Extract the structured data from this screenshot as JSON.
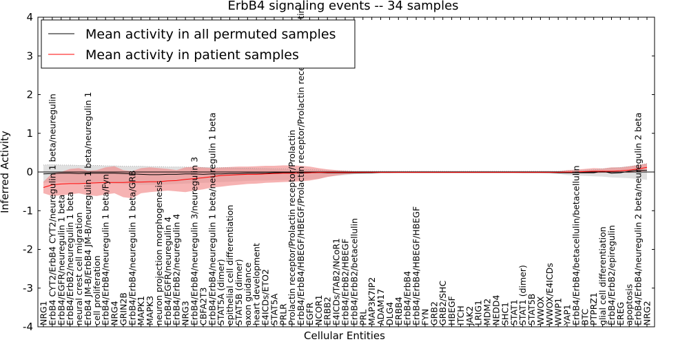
{
  "chart_data": {
    "type": "line",
    "title": "ErbB4 signaling events -- 34 samples",
    "xlabel": "Cellular Entities",
    "ylabel": "Inferred Activity",
    "ylim": [
      -4,
      4
    ],
    "yticks": [
      -4,
      -3,
      -2,
      -1,
      0,
      1,
      2,
      3,
      4
    ],
    "grid": false,
    "legend_position": "top-left",
    "colors": {
      "permuted": "#000000",
      "patient": "#ff0000",
      "patient_band": "#f08080",
      "permuted_band": "#bbbbbb"
    },
    "categories": [
      "NRG1",
      "ErbB4 CYT2/ErbB4 CYT2/neuregulin 1 beta/neuregulin",
      "ErbB4/EGFR/neuregulin 1 beta",
      "ErbB4/ErbB2/neuregulin 1 beta",
      "neural crest cell migration",
      "ErbB4 JM-B/ErbB4 JM-B/neuregulin 1 beta/neuregulin 1",
      "cell proliferation",
      "ErbB4/ErbB4/neuregulin 1 beta/Fyn",
      "NRG4",
      "GRIN2B",
      "ErbB4/ErbB4/neuregulin 1 beta/GRB",
      "MAPK1",
      "MAPK3",
      "neuron projection morphogenesis",
      "ErbB4/EGFR/neuregulin 4",
      "ErbB4/ErbB2/neuregulin 4",
      "NRG3",
      "ErbB4/ErbB4/neuregulin 3/neuregulin 3",
      "CBFA2T3",
      "ErbB4/ErbB4/neuregulin 1 beta/neuregulin 1 beta",
      "STAT5A (dimer)",
      "epithelial cell differentiation",
      "STAT5B (dimer)",
      "axon guidance",
      "heart development",
      "E4ICDs/ETO2",
      "STAT5A",
      "PRLR",
      "Prolactin receptor/Prolactin receptor/Prolactin",
      "ErbB4/ErbB4/HBEGF/HBEGF/Prolactin receptor/Prolactin receptor/Prolactin",
      "EGFR",
      "NCOR1",
      "ERBB2",
      "E4ICDs/TAB2/NCoR1",
      "ErbB4/ErbB2/HBEGF",
      "ErbB4/ErbB2/betacellulin",
      "PRL",
      "MAP3K7IP2",
      "ADAM17",
      "DLG4",
      "ERBB4",
      "ErbB4/ErbB4",
      "ErbB4/ErbB4/HBEGF/HBEGF",
      "FYN",
      "GRB2",
      "GRB2/SHC",
      "HBEGF",
      "ITCH",
      "JAK2",
      "LRIG1",
      "MDM2",
      "NEDD4",
      "SHC1",
      "STAT1",
      "STAT1 (dimer)",
      "STAT5B",
      "WWOX",
      "WWOX/E4ICDs",
      "WWP1",
      "YAP1",
      "ErbB4/ErbB4/betacellulin/betacellulin",
      "BTC",
      "PTPRZ1",
      "glial cell differentiation",
      "ErbB4/ErbB2/epiregulin",
      "EREG",
      "apoptosis",
      "ErbB4/ErbB4/neuregulin 2 beta/neuregulin 2 beta",
      "NRG2"
    ],
    "series": [
      {
        "name": "Mean activity in all permuted samples",
        "values": [
          -0.05,
          -0.04,
          -0.03,
          -0.03,
          -0.04,
          -0.03,
          -0.03,
          -0.03,
          -0.03,
          -0.04,
          -0.05,
          -0.06,
          -0.07,
          -0.07,
          -0.06,
          -0.06,
          -0.05,
          -0.05,
          -0.06,
          -0.05,
          -0.05,
          -0.04,
          -0.04,
          -0.03,
          -0.03,
          -0.03,
          -0.02,
          -0.02,
          -0.02,
          -0.03,
          -0.02,
          -0.01,
          -0.02,
          -0.02,
          -0.02,
          -0.02,
          -0.02,
          -0.02,
          -0.01,
          -0.01,
          -0.01,
          -0.01,
          -0.01,
          -0.01,
          -0.01,
          -0.01,
          -0.01,
          -0.01,
          -0.01,
          -0.01,
          -0.01,
          -0.01,
          -0.01,
          -0.01,
          -0.01,
          -0.01,
          -0.01,
          -0.01,
          -0.02,
          -0.02,
          -0.02,
          -0.02,
          -0.02,
          0.02,
          -0.03,
          -0.02,
          0.02,
          0.05,
          0.04
        ],
        "lower": [
          -0.28,
          -0.26,
          -0.26,
          -0.27,
          -0.28,
          -0.27,
          -0.27,
          -0.29,
          -0.3,
          -0.31,
          -0.32,
          -0.33,
          -0.33,
          -0.33,
          -0.32,
          -0.31,
          -0.3,
          -0.29,
          -0.28,
          -0.27,
          -0.26,
          -0.25,
          -0.24,
          -0.23,
          -0.22,
          -0.22,
          -0.21,
          -0.21,
          -0.2,
          -0.2,
          -0.19,
          -0.18,
          -0.12,
          -0.1,
          -0.08,
          -0.06,
          -0.05,
          -0.04,
          -0.03,
          -0.03,
          -0.02,
          -0.02,
          -0.02,
          -0.02,
          -0.02,
          -0.02,
          -0.02,
          -0.02,
          -0.02,
          -0.02,
          -0.02,
          -0.02,
          -0.02,
          -0.02,
          -0.03,
          -0.03,
          -0.03,
          -0.04,
          -0.05,
          -0.08,
          -0.09,
          -0.1,
          -0.11,
          -0.12,
          -0.14,
          -0.15,
          -0.16,
          -0.18,
          -0.2
        ],
        "upper": [
          0.18,
          0.19,
          0.18,
          0.18,
          0.17,
          0.17,
          0.17,
          0.16,
          0.16,
          0.15,
          0.15,
          0.15,
          0.14,
          0.14,
          0.13,
          0.13,
          0.13,
          0.12,
          0.12,
          0.12,
          0.11,
          0.11,
          0.1,
          0.1,
          0.09,
          0.09,
          0.08,
          0.08,
          0.07,
          0.07,
          0.06,
          0.05,
          0.04,
          0.03,
          0.03,
          0.02,
          0.02,
          0.02,
          0.02,
          0.02,
          0.02,
          0.02,
          0.02,
          0.02,
          0.02,
          0.02,
          0.02,
          0.02,
          0.02,
          0.02,
          0.02,
          0.02,
          0.02,
          0.02,
          0.02,
          0.02,
          0.02,
          0.02,
          0.02,
          0.03,
          0.04,
          0.05,
          0.06,
          0.08,
          0.1,
          0.12,
          0.14,
          0.18,
          0.22
        ]
      },
      {
        "name": "Mean activity in patient samples",
        "values": [
          -0.4,
          -0.33,
          -0.31,
          -0.3,
          -0.3,
          -0.29,
          -0.28,
          -0.27,
          -0.27,
          -0.27,
          -0.26,
          -0.26,
          -0.25,
          -0.25,
          -0.23,
          -0.22,
          -0.19,
          -0.17,
          -0.15,
          -0.12,
          -0.09,
          -0.08,
          -0.07,
          -0.06,
          -0.06,
          -0.05,
          -0.04,
          -0.03,
          -0.03,
          -0.02,
          -0.02,
          -0.01,
          -0.01,
          -0.01,
          -0.01,
          -0.01,
          -0.01,
          -0.01,
          -0.01,
          -0.01,
          -0.01,
          -0.01,
          -0.01,
          -0.01,
          -0.01,
          -0.01,
          -0.01,
          -0.01,
          -0.01,
          -0.01,
          -0.01,
          -0.01,
          -0.01,
          -0.01,
          -0.01,
          -0.01,
          -0.01,
          -0.01,
          -0.01,
          0.0,
          0.0,
          0.01,
          0.02,
          0.02,
          0.02,
          0.03,
          0.05,
          0.08,
          0.12
        ],
        "lower": [
          -0.55,
          -0.62,
          -0.6,
          -0.58,
          -0.55,
          -0.6,
          -0.62,
          -0.58,
          -0.55,
          -0.65,
          -0.68,
          -0.55,
          -0.52,
          -0.5,
          -0.48,
          -0.5,
          -0.52,
          -0.48,
          -0.45,
          -0.4,
          -0.38,
          -0.35,
          -0.33,
          -0.31,
          -0.3,
          -0.28,
          -0.27,
          -0.26,
          -0.25,
          -0.24,
          -0.22,
          -0.18,
          -0.13,
          -0.09,
          -0.06,
          -0.04,
          -0.03,
          -0.02,
          -0.02,
          -0.02,
          -0.02,
          -0.02,
          -0.02,
          -0.02,
          -0.02,
          -0.02,
          -0.02,
          -0.02,
          -0.02,
          -0.02,
          -0.02,
          -0.02,
          -0.02,
          -0.02,
          -0.02,
          -0.02,
          -0.02,
          -0.02,
          -0.02,
          -0.03,
          -0.03,
          -0.03,
          -0.03,
          -0.02,
          -0.02,
          -0.01,
          -0.02,
          0.0,
          0.03
        ],
        "upper": [
          -0.25,
          -0.03,
          0.0,
          0.08,
          0.1,
          0.03,
          0.05,
          0.12,
          0.15,
          0.05,
          0.02,
          0.1,
          0.12,
          0.1,
          0.08,
          0.05,
          0.12,
          0.14,
          0.12,
          0.1,
          0.12,
          0.13,
          0.14,
          0.14,
          0.15,
          0.16,
          0.16,
          0.17,
          0.17,
          0.16,
          0.14,
          0.1,
          0.07,
          0.05,
          0.03,
          0.02,
          0.02,
          0.02,
          0.02,
          0.02,
          0.02,
          0.02,
          0.02,
          0.02,
          0.02,
          0.02,
          0.02,
          0.02,
          0.02,
          0.02,
          0.02,
          0.02,
          0.02,
          0.02,
          0.02,
          0.02,
          0.02,
          0.02,
          0.02,
          0.05,
          0.06,
          0.08,
          0.1,
          0.09,
          0.12,
          0.12,
          0.15,
          0.18,
          0.22
        ]
      }
    ]
  }
}
